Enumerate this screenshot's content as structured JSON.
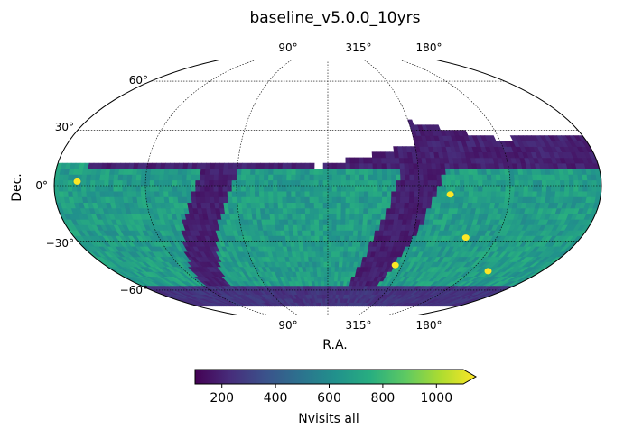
{
  "chart_data": {
    "type": "heatmap",
    "projection": "mollweide",
    "title": "baseline_v5.0.0_10yrs",
    "xlabel": "R.A.",
    "ylabel": "Dec.",
    "x_tick_labels": [
      "90°",
      "315°",
      "180°"
    ],
    "y_tick_labels": [
      {
        "dec": 60,
        "label": "60°"
      },
      {
        "dec": 30,
        "label": "30°"
      },
      {
        "dec": 0,
        "label": "0°"
      },
      {
        "dec": -30,
        "label": "−30°"
      },
      {
        "dec": -60,
        "label": "−60°"
      }
    ],
    "meridians_deg": [
      -120,
      -60,
      0,
      60,
      120
    ],
    "parallels_deg": [
      -60,
      -30,
      0,
      30,
      60
    ],
    "grid": true,
    "colorscale": "viridis",
    "colorbar": {
      "label": "Nvisits all",
      "range": [
        100,
        1100
      ],
      "ticks": [
        200,
        400,
        600,
        800,
        1000
      ],
      "extend": "max"
    },
    "coverage": {
      "dec_max_north": 25,
      "dec_min_south": -72,
      "typical_value": 650,
      "galactic_plane_value": 150,
      "high_dec_band_value": 150,
      "deep_drilling_value": 1100
    },
    "deep_drilling_fields": [
      {
        "ra": 9.45,
        "dec": -44.0
      },
      {
        "ra": 35.7,
        "dec": -4.7
      },
      {
        "ra": 53.1,
        "dec": -28.1
      },
      {
        "ra": 150.1,
        "dec": 2.2
      },
      {
        "ra": 90.0,
        "dec": -47.7
      }
    ]
  }
}
